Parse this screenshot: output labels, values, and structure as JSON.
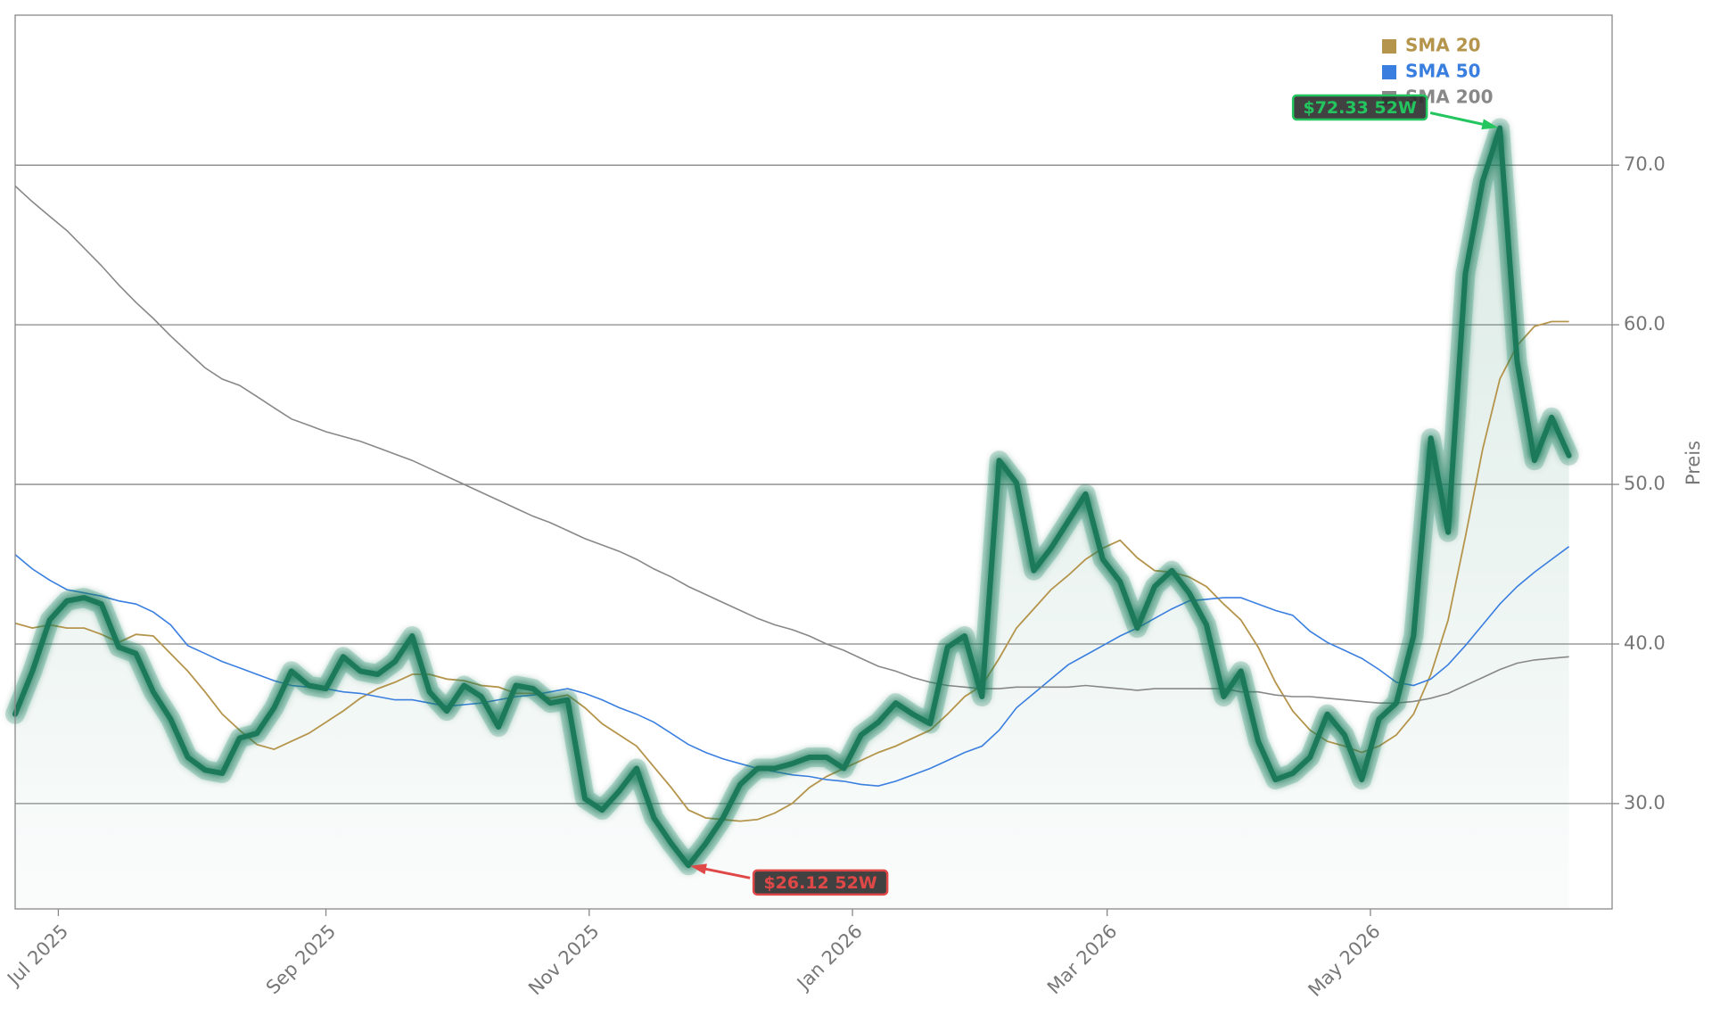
{
  "chart_data": {
    "type": "line",
    "y_label": "Preis",
    "x": [
      "2025-06-21",
      "2025-06-25",
      "2025-06-29",
      "2025-07-03",
      "2025-07-07",
      "2025-07-11",
      "2025-07-15",
      "2025-07-19",
      "2025-07-23",
      "2025-07-27",
      "2025-07-31",
      "2025-08-04",
      "2025-08-08",
      "2025-08-12",
      "2025-08-16",
      "2025-08-20",
      "2025-08-24",
      "2025-08-28",
      "2025-09-01",
      "2025-09-05",
      "2025-09-09",
      "2025-09-13",
      "2025-09-17",
      "2025-09-21",
      "2025-09-25",
      "2025-09-29",
      "2025-10-03",
      "2025-10-07",
      "2025-10-11",
      "2025-10-15",
      "2025-10-19",
      "2025-10-23",
      "2025-10-27",
      "2025-10-31",
      "2025-11-04",
      "2025-11-08",
      "2025-11-12",
      "2025-11-16",
      "2025-11-20",
      "2025-11-24",
      "2025-11-28",
      "2025-12-02",
      "2025-12-06",
      "2025-12-10",
      "2025-12-14",
      "2025-12-18",
      "2025-12-22",
      "2025-12-26",
      "2025-12-30",
      "2026-01-03",
      "2026-01-07",
      "2026-01-11",
      "2026-01-15",
      "2026-01-19",
      "2026-01-23",
      "2026-01-27",
      "2026-01-31",
      "2026-02-04",
      "2026-02-08",
      "2026-02-12",
      "2026-02-16",
      "2026-02-20",
      "2026-02-24",
      "2026-02-28",
      "2026-03-04",
      "2026-03-08",
      "2026-03-12",
      "2026-03-16",
      "2026-03-20",
      "2026-03-24",
      "2026-03-28",
      "2026-04-01",
      "2026-04-05",
      "2026-04-09",
      "2026-04-13",
      "2026-04-17",
      "2026-04-21",
      "2026-04-25",
      "2026-04-29",
      "2026-05-03",
      "2026-05-07",
      "2026-05-11",
      "2026-05-15",
      "2026-05-19",
      "2026-05-23",
      "2026-05-27",
      "2026-05-31",
      "2026-06-04",
      "2026-06-08",
      "2026-06-12",
      "2026-06-16"
    ],
    "series": [
      {
        "color": "#1a7a5a",
        "values": [
          35.6,
          38.3,
          41.5,
          42.7,
          42.9,
          42.5,
          39.8,
          39.4,
          37.0,
          35.3,
          32.9,
          32.1,
          31.9,
          34.1,
          34.4,
          36.0,
          38.3,
          37.4,
          37.2,
          39.2,
          38.3,
          38.1,
          38.9,
          40.5,
          37.0,
          35.8,
          37.4,
          36.7,
          34.8,
          37.4,
          37.2,
          36.3,
          36.5,
          30.3,
          29.6,
          30.8,
          32.2,
          29.1,
          27.5,
          26.12,
          27.5,
          29.1,
          31.2,
          32.2,
          32.2,
          32.5,
          32.9,
          32.9,
          32.2,
          34.3,
          35.1,
          36.3,
          35.6,
          35.0,
          39.8,
          40.5,
          36.7,
          51.5,
          50.1,
          44.6,
          46.0,
          47.7,
          49.4,
          45.3,
          43.9,
          41.0,
          43.6,
          44.6,
          43.2,
          41.2,
          36.7,
          38.3,
          33.9,
          31.5,
          31.9,
          32.9,
          35.6,
          34.3,
          31.5,
          35.3,
          36.3,
          40.5,
          52.9,
          47.0,
          63.2,
          69.0,
          72.33,
          57.7,
          51.5,
          54.2,
          51.8
        ]
      },
      {
        "name": "SMA 20",
        "color": "#b5954c",
        "values": [
          41.3,
          41.0,
          41.2,
          41.0,
          41.0,
          40.6,
          40.1,
          40.6,
          40.5,
          39.4,
          38.3,
          37.0,
          35.6,
          34.6,
          33.7,
          33.4,
          33.9,
          34.4,
          35.1,
          35.8,
          36.6,
          37.2,
          37.6,
          38.1,
          38.1,
          37.8,
          37.7,
          37.4,
          37.3,
          36.9,
          36.9,
          36.6,
          36.8,
          36.0,
          35.0,
          34.3,
          33.6,
          32.3,
          31.0,
          29.6,
          29.1,
          29.0,
          28.9,
          29.0,
          29.4,
          30.0,
          31.0,
          31.7,
          32.2,
          32.7,
          33.2,
          33.6,
          34.1,
          34.6,
          35.6,
          36.7,
          37.4,
          39.1,
          41.0,
          42.2,
          43.4,
          44.3,
          45.3,
          46.0,
          46.5,
          45.4,
          44.6,
          44.5,
          44.2,
          43.6,
          42.5,
          41.5,
          39.8,
          37.6,
          35.8,
          34.6,
          33.9,
          33.6,
          33.2,
          33.6,
          34.3,
          35.6,
          38.1,
          41.5,
          46.7,
          52.2,
          56.6,
          58.7,
          59.9,
          60.2,
          60.2
        ]
      },
      {
        "name": "SMA 50",
        "color": "#3a7fe0",
        "values": [
          45.6,
          44.7,
          44.0,
          43.4,
          43.2,
          43.0,
          42.7,
          42.5,
          42.0,
          41.2,
          39.9,
          39.4,
          38.9,
          38.5,
          38.1,
          37.7,
          37.4,
          37.3,
          37.2,
          37.0,
          36.9,
          36.7,
          36.5,
          36.5,
          36.3,
          36.1,
          36.2,
          36.3,
          36.5,
          36.7,
          36.8,
          37.0,
          37.2,
          36.9,
          36.5,
          36.0,
          35.6,
          35.1,
          34.4,
          33.7,
          33.2,
          32.8,
          32.5,
          32.2,
          32.0,
          31.8,
          31.7,
          31.5,
          31.4,
          31.2,
          31.1,
          31.4,
          31.8,
          32.2,
          32.7,
          33.2,
          33.6,
          34.6,
          36.0,
          36.9,
          37.8,
          38.7,
          39.3,
          39.9,
          40.5,
          41.0,
          41.6,
          42.2,
          42.7,
          42.8,
          42.9,
          42.9,
          42.5,
          42.1,
          41.8,
          40.8,
          40.1,
          39.6,
          39.1,
          38.4,
          37.6,
          37.4,
          37.8,
          38.7,
          39.9,
          41.2,
          42.5,
          43.6,
          44.5,
          45.3,
          46.1
        ]
      },
      {
        "name": "SMA 200",
        "color": "#888888",
        "values": [
          68.7,
          67.7,
          66.8,
          65.9,
          64.8,
          63.7,
          62.5,
          61.4,
          60.4,
          59.3,
          58.3,
          57.3,
          56.6,
          56.2,
          55.5,
          54.8,
          54.1,
          53.7,
          53.3,
          53.0,
          52.7,
          52.3,
          51.9,
          51.5,
          51.0,
          50.5,
          50.0,
          49.5,
          49.0,
          48.5,
          48.0,
          47.6,
          47.1,
          46.6,
          46.2,
          45.8,
          45.3,
          44.7,
          44.2,
          43.6,
          43.1,
          42.6,
          42.1,
          41.6,
          41.2,
          40.9,
          40.5,
          40.0,
          39.6,
          39.1,
          38.6,
          38.3,
          37.9,
          37.6,
          37.4,
          37.3,
          37.2,
          37.2,
          37.3,
          37.3,
          37.3,
          37.3,
          37.4,
          37.3,
          37.2,
          37.1,
          37.2,
          37.2,
          37.2,
          37.2,
          37.2,
          37.0,
          37.0,
          36.8,
          36.7,
          36.7,
          36.6,
          36.5,
          36.4,
          36.3,
          36.3,
          36.4,
          36.6,
          36.9,
          37.4,
          37.9,
          38.4,
          38.8,
          39.0,
          39.1,
          39.2
        ]
      }
    ],
    "annotations": [
      {
        "text": "$72.33 52W",
        "x": "2026-05-31",
        "y": 72.33,
        "color": "#22c55e"
      },
      {
        "text": "$26.12 52W",
        "x": "2025-11-24",
        "y": 26.12,
        "color": "#e04848"
      }
    ],
    "xlim": [
      "2025-06-21",
      "2026-06-26"
    ],
    "xticks": [
      {
        "value": "2025-07-01",
        "label": "Jul 2025"
      },
      {
        "value": "2025-09-01",
        "label": "Sep 2025"
      },
      {
        "value": "2025-11-01",
        "label": "Nov 2025"
      },
      {
        "value": "2026-01-01",
        "label": "Jan 2026"
      },
      {
        "value": "2026-03-01",
        "label": "Mar 2026"
      },
      {
        "value": "2026-05-01",
        "label": "May 2026"
      }
    ],
    "ylim": [
      23.4,
      79.4
    ],
    "yticks": [
      {
        "value": 30,
        "label": "30.0"
      },
      {
        "value": 40,
        "label": "40.0"
      },
      {
        "value": 50,
        "label": "50.0"
      },
      {
        "value": 60,
        "label": "60.0"
      },
      {
        "value": 70,
        "label": "70.0"
      }
    ],
    "grid": true,
    "legend": "top-right"
  }
}
